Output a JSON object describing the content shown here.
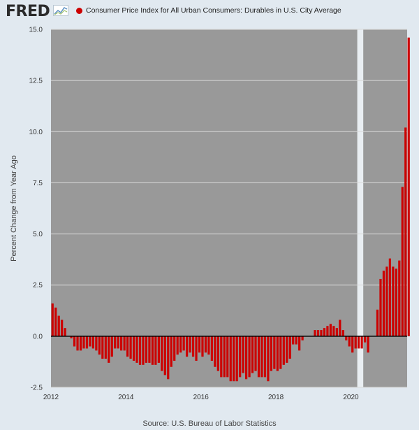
{
  "header": {
    "logo_text": "FRED",
    "logo_icon": "line-chart-icon",
    "legend_label": "Consumer Price Index for All Urban Consumers: Durables in U.S. City Average",
    "legend_color": "#cc0000"
  },
  "footer": {
    "source": "Source: U.S. Bureau of Labor Statistics"
  },
  "chart_data": {
    "type": "bar",
    "title": "Consumer Price Index for All Urban Consumers: Durables in U.S. City Average",
    "xlabel": "",
    "ylabel": "Percent Change from Year Ago",
    "ylim": [
      -2.5,
      15.0
    ],
    "yticks": [
      -2.5,
      0.0,
      2.5,
      5.0,
      7.5,
      10.0,
      12.5,
      15.0
    ],
    "ytick_labels": [
      "-2.5",
      "0.0",
      "2.5",
      "5.0",
      "7.5",
      "10.0",
      "12.5",
      "15.0"
    ],
    "xticks": [
      2012,
      2014,
      2016,
      2018,
      2020
    ],
    "xtick_labels": [
      "2012",
      "2014",
      "2016",
      "2018",
      "2020"
    ],
    "x_start": "2012-01",
    "x_end": "2021-06",
    "recession": {
      "start": 2020.17,
      "end": 2020.33
    },
    "bar_color": "#cc0000",
    "plot_bg": "#999999",
    "grid": true,
    "legend_position": "top",
    "values": [
      1.6,
      1.4,
      1.0,
      0.8,
      0.4,
      0.0,
      -0.1,
      -0.5,
      -0.7,
      -0.7,
      -0.6,
      -0.6,
      -0.5,
      -0.6,
      -0.7,
      -0.9,
      -1.1,
      -1.1,
      -1.3,
      -1.0,
      -0.6,
      -0.6,
      -0.7,
      -0.7,
      -1.0,
      -1.1,
      -1.2,
      -1.3,
      -1.4,
      -1.4,
      -1.3,
      -1.3,
      -1.4,
      -1.4,
      -1.3,
      -1.7,
      -1.9,
      -2.1,
      -1.5,
      -1.2,
      -0.9,
      -0.8,
      -0.7,
      -1.0,
      -0.8,
      -1.0,
      -1.2,
      -0.8,
      -1.0,
      -0.8,
      -0.9,
      -1.2,
      -1.5,
      -1.7,
      -2.0,
      -2.0,
      -2.0,
      -2.2,
      -2.2,
      -2.2,
      -2.0,
      -1.8,
      -2.1,
      -2.0,
      -1.8,
      -1.7,
      -2.0,
      -2.0,
      -2.0,
      -2.2,
      -1.7,
      -1.6,
      -1.7,
      -1.6,
      -1.4,
      -1.3,
      -1.1,
      -0.4,
      -0.4,
      -0.7,
      -0.2,
      0.0,
      0.0,
      0.0,
      0.3,
      0.3,
      0.3,
      0.4,
      0.5,
      0.6,
      0.5,
      0.4,
      0.8,
      0.3,
      -0.2,
      -0.5,
      -0.8,
      -0.6,
      -0.6,
      -0.6,
      -0.3,
      -0.8,
      0.0,
      0.0,
      1.3,
      2.8,
      3.2,
      3.4,
      3.8,
      3.4,
      3.3,
      3.7,
      7.3,
      10.2,
      14.6
    ]
  }
}
